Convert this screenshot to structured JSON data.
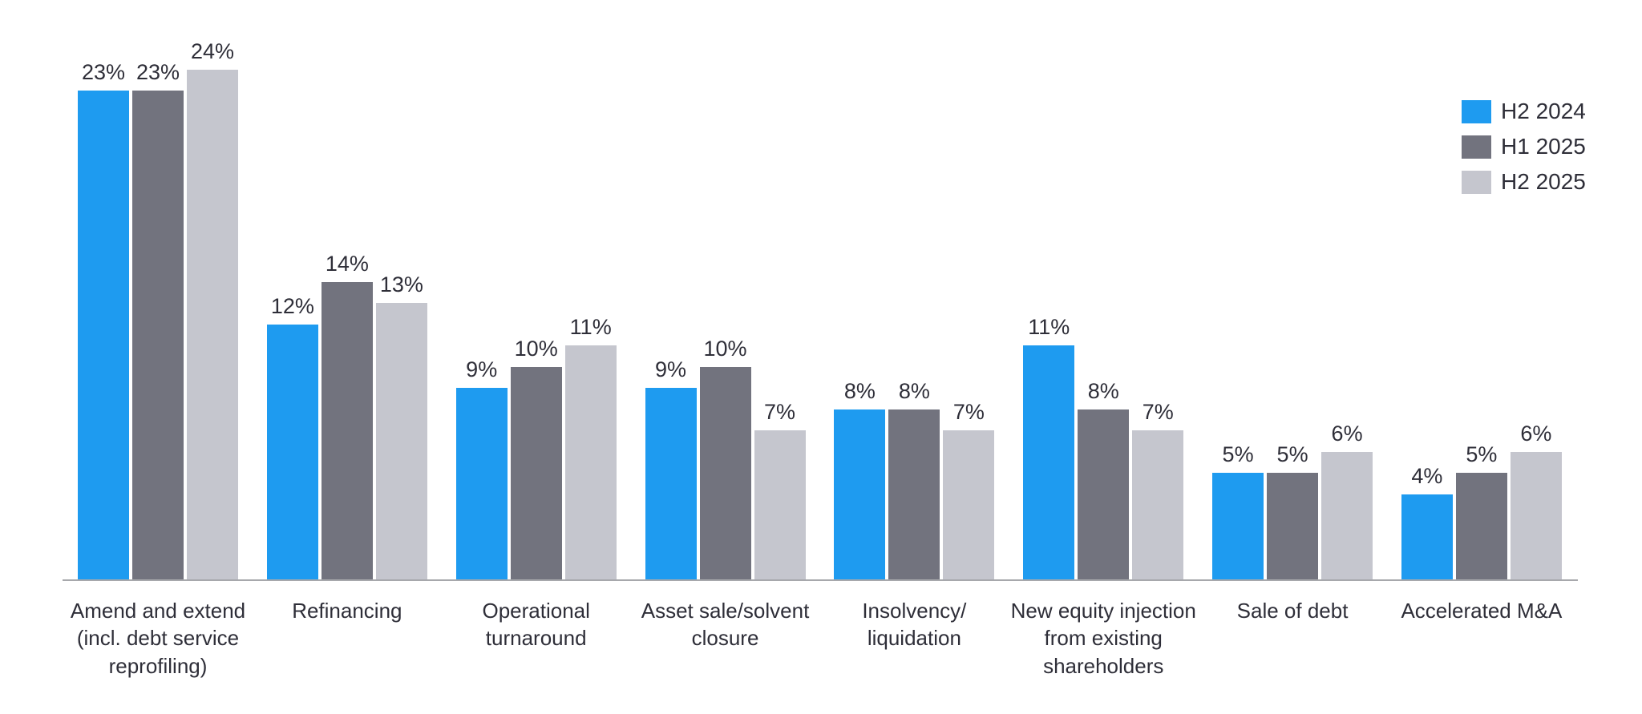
{
  "colors": {
    "background": "#ffffff",
    "axis_line": "#a7a8ac",
    "text": "#2e2e38"
  },
  "legend": {
    "items": [
      {
        "label": "H2 2024",
        "color": "#1e9bf0"
      },
      {
        "label": "H1 2025",
        "color": "#72737e"
      },
      {
        "label": "H2 2025",
        "color": "#c5c6ce"
      }
    ]
  },
  "chart_data": {
    "type": "bar",
    "title": "",
    "xlabel": "",
    "ylabel": "",
    "value_suffix": "%",
    "ylim": [
      0,
      24
    ],
    "grid": false,
    "legend_position": "top-right",
    "categories": [
      "Amend and extend (incl. debt service reprofiling)",
      "Refinancing",
      "Operational turnaround",
      "Asset sale/solvent closure",
      "Insolvency/liquidation",
      "New equity injection from existing shareholders",
      "Sale of debt",
      "Accelerated M&A"
    ],
    "category_label_lines": [
      [
        "Amend and extend",
        "(incl. debt service",
        "reprofiling)"
      ],
      [
        "Refinancing"
      ],
      [
        "Operational",
        "turnaround"
      ],
      [
        "Asset sale/solvent",
        "closure"
      ],
      [
        "Insolvency/",
        "liquidation"
      ],
      [
        "New equity injection",
        "from existing",
        "shareholders"
      ],
      [
        "Sale of debt"
      ],
      [
        "Accelerated M&A"
      ]
    ],
    "series": [
      {
        "name": "H2 2024",
        "color": "#1e9bf0",
        "values": [
          23,
          12,
          9,
          9,
          8,
          11,
          5,
          4
        ]
      },
      {
        "name": "H1 2025",
        "color": "#72737e",
        "values": [
          23,
          14,
          10,
          10,
          8,
          8,
          5,
          5
        ]
      },
      {
        "name": "H2 2025",
        "color": "#c5c6ce",
        "values": [
          24,
          13,
          11,
          7,
          7,
          7,
          6,
          6
        ]
      }
    ]
  }
}
